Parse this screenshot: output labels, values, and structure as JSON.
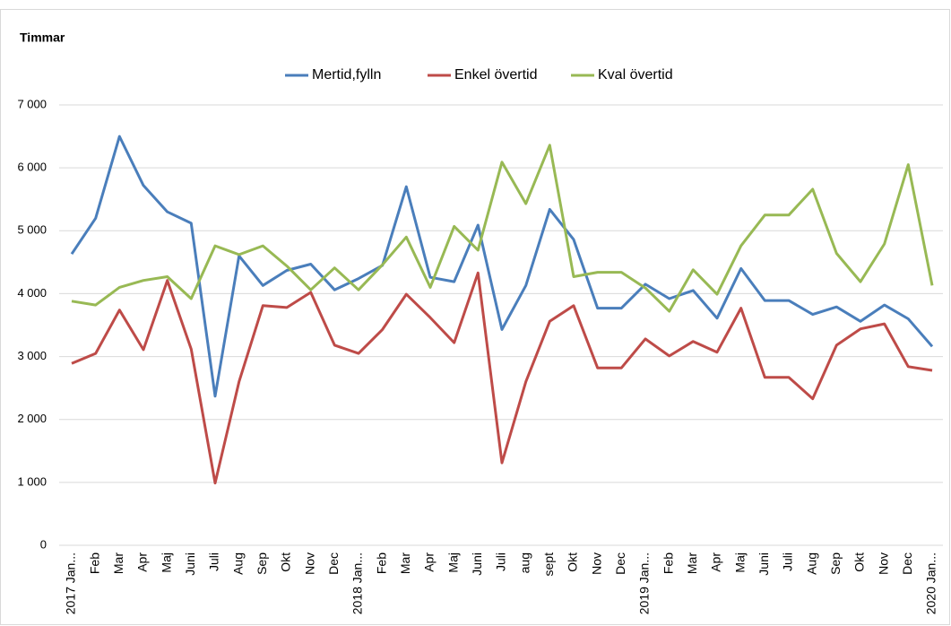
{
  "chart_data": {
    "type": "line",
    "title": "Timmar",
    "categories": [
      "2017 Jan...",
      "Feb",
      "Mar",
      "Apr",
      "Maj",
      "Juni",
      "Juli",
      "Aug",
      "Sep",
      "Okt",
      "Nov",
      "Dec",
      "2018 Jan...",
      "Feb",
      "Mar",
      "Apr",
      "Maj",
      "Juni",
      "Juli",
      "aug",
      "sept",
      "Okt",
      "Nov",
      "Dec",
      "2019 Jan...",
      "Feb",
      "Mar",
      "Apr",
      "Maj",
      "Juni",
      "Juli",
      "Aug",
      "Sep",
      "Okt",
      "Nov",
      "Dec",
      "2020 Jan..."
    ],
    "series": [
      {
        "name": "Mertid,fylln",
        "color": "#4a7ebb",
        "values": [
          4630,
          5200,
          6500,
          5720,
          5300,
          5120,
          2370,
          4600,
          4130,
          4370,
          4470,
          4060,
          4240,
          4450,
          5700,
          4260,
          4190,
          5090,
          3430,
          4130,
          5340,
          4860,
          3770,
          3770,
          4150,
          3920,
          4050,
          3610,
          4400,
          3890,
          3890,
          3670,
          3790,
          3560,
          3820,
          3600,
          3160
        ]
      },
      {
        "name": "Enkel övertid",
        "color": "#be4b48",
        "values": [
          2890,
          3050,
          3740,
          3110,
          4210,
          3120,
          990,
          2600,
          3810,
          3780,
          4020,
          3180,
          3050,
          3430,
          3990,
          3620,
          3220,
          4330,
          1310,
          2600,
          3560,
          3810,
          2820,
          2820,
          3280,
          3010,
          3240,
          3070,
          3770,
          2670,
          2670,
          2330,
          3180,
          3440,
          3520,
          2840,
          2780
        ]
      },
      {
        "name": "Kval övertid",
        "color": "#98b954",
        "values": [
          3880,
          3820,
          4100,
          4210,
          4270,
          3920,
          4760,
          4620,
          4760,
          4440,
          4060,
          4410,
          4060,
          4460,
          4900,
          4100,
          5070,
          4690,
          6090,
          5430,
          6360,
          4270,
          4340,
          4340,
          4090,
          3720,
          4380,
          3990,
          4760,
          5250,
          5250,
          5660,
          4640,
          4190,
          4790,
          6050,
          4130
        ]
      }
    ],
    "ylim": [
      0,
      7000
    ],
    "yticks": [
      0,
      {
        "value": 1000,
        "label": "1 000"
      },
      {
        "value": 2000,
        "label": "2 000"
      },
      {
        "value": 3000,
        "label": "3 000"
      },
      {
        "value": 4000,
        "label": "4 000"
      },
      {
        "value": 5000,
        "label": "5 000"
      },
      {
        "value": 6000,
        "label": "6 000"
      },
      {
        "value": 7000,
        "label": "7 000"
      }
    ],
    "grid": true,
    "legend": "top"
  }
}
